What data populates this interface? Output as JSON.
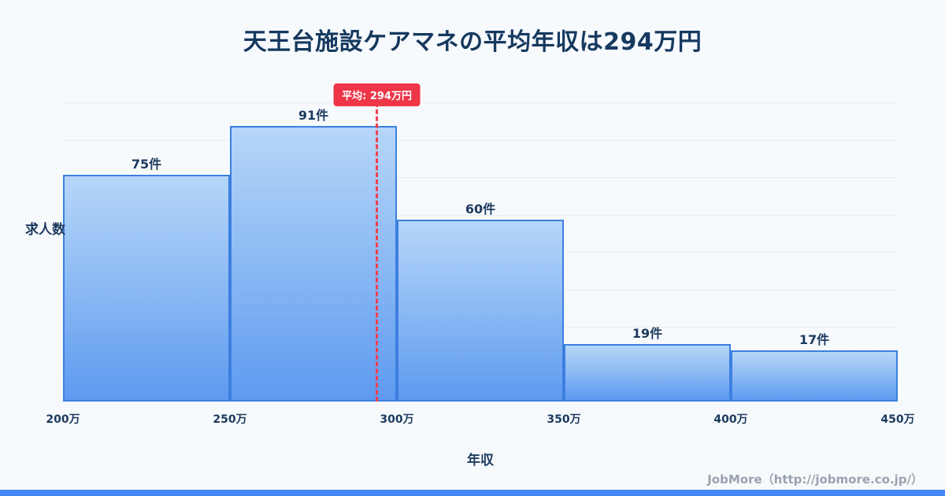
{
  "title": "天王台施設ケアマネの平均年収は294万円",
  "chart_data": {
    "type": "bar",
    "subtype": "histogram",
    "categories": [
      "200万-250万",
      "250万-300万",
      "300万-350万",
      "350万-400万",
      "400万-450万"
    ],
    "values": [
      75,
      91,
      60,
      19,
      17
    ],
    "bar_labels": [
      "75件",
      "91件",
      "60件",
      "19件",
      "17件"
    ],
    "x_ticks": [
      "200万",
      "250万",
      "300万",
      "350万",
      "400万",
      "450万"
    ],
    "x_range": [
      200,
      450
    ],
    "ylim": [
      0,
      95
    ],
    "xlabel": "年収",
    "ylabel": "求人数",
    "grid": true,
    "legend": "none",
    "mean": {
      "value": 294,
      "label": "平均: 294万円"
    },
    "colors": {
      "bar_top": "#b6d6f8",
      "bar_bottom": "#5e9af0",
      "bar_border": "#3d7fe0",
      "mean_line": "#f4404f",
      "title_text": "#16395f",
      "background": "#f7fafd",
      "accent_strip": "#4585f4"
    }
  },
  "footer": {
    "credit": "JobMore（http://jobmore.co.jp/）"
  }
}
